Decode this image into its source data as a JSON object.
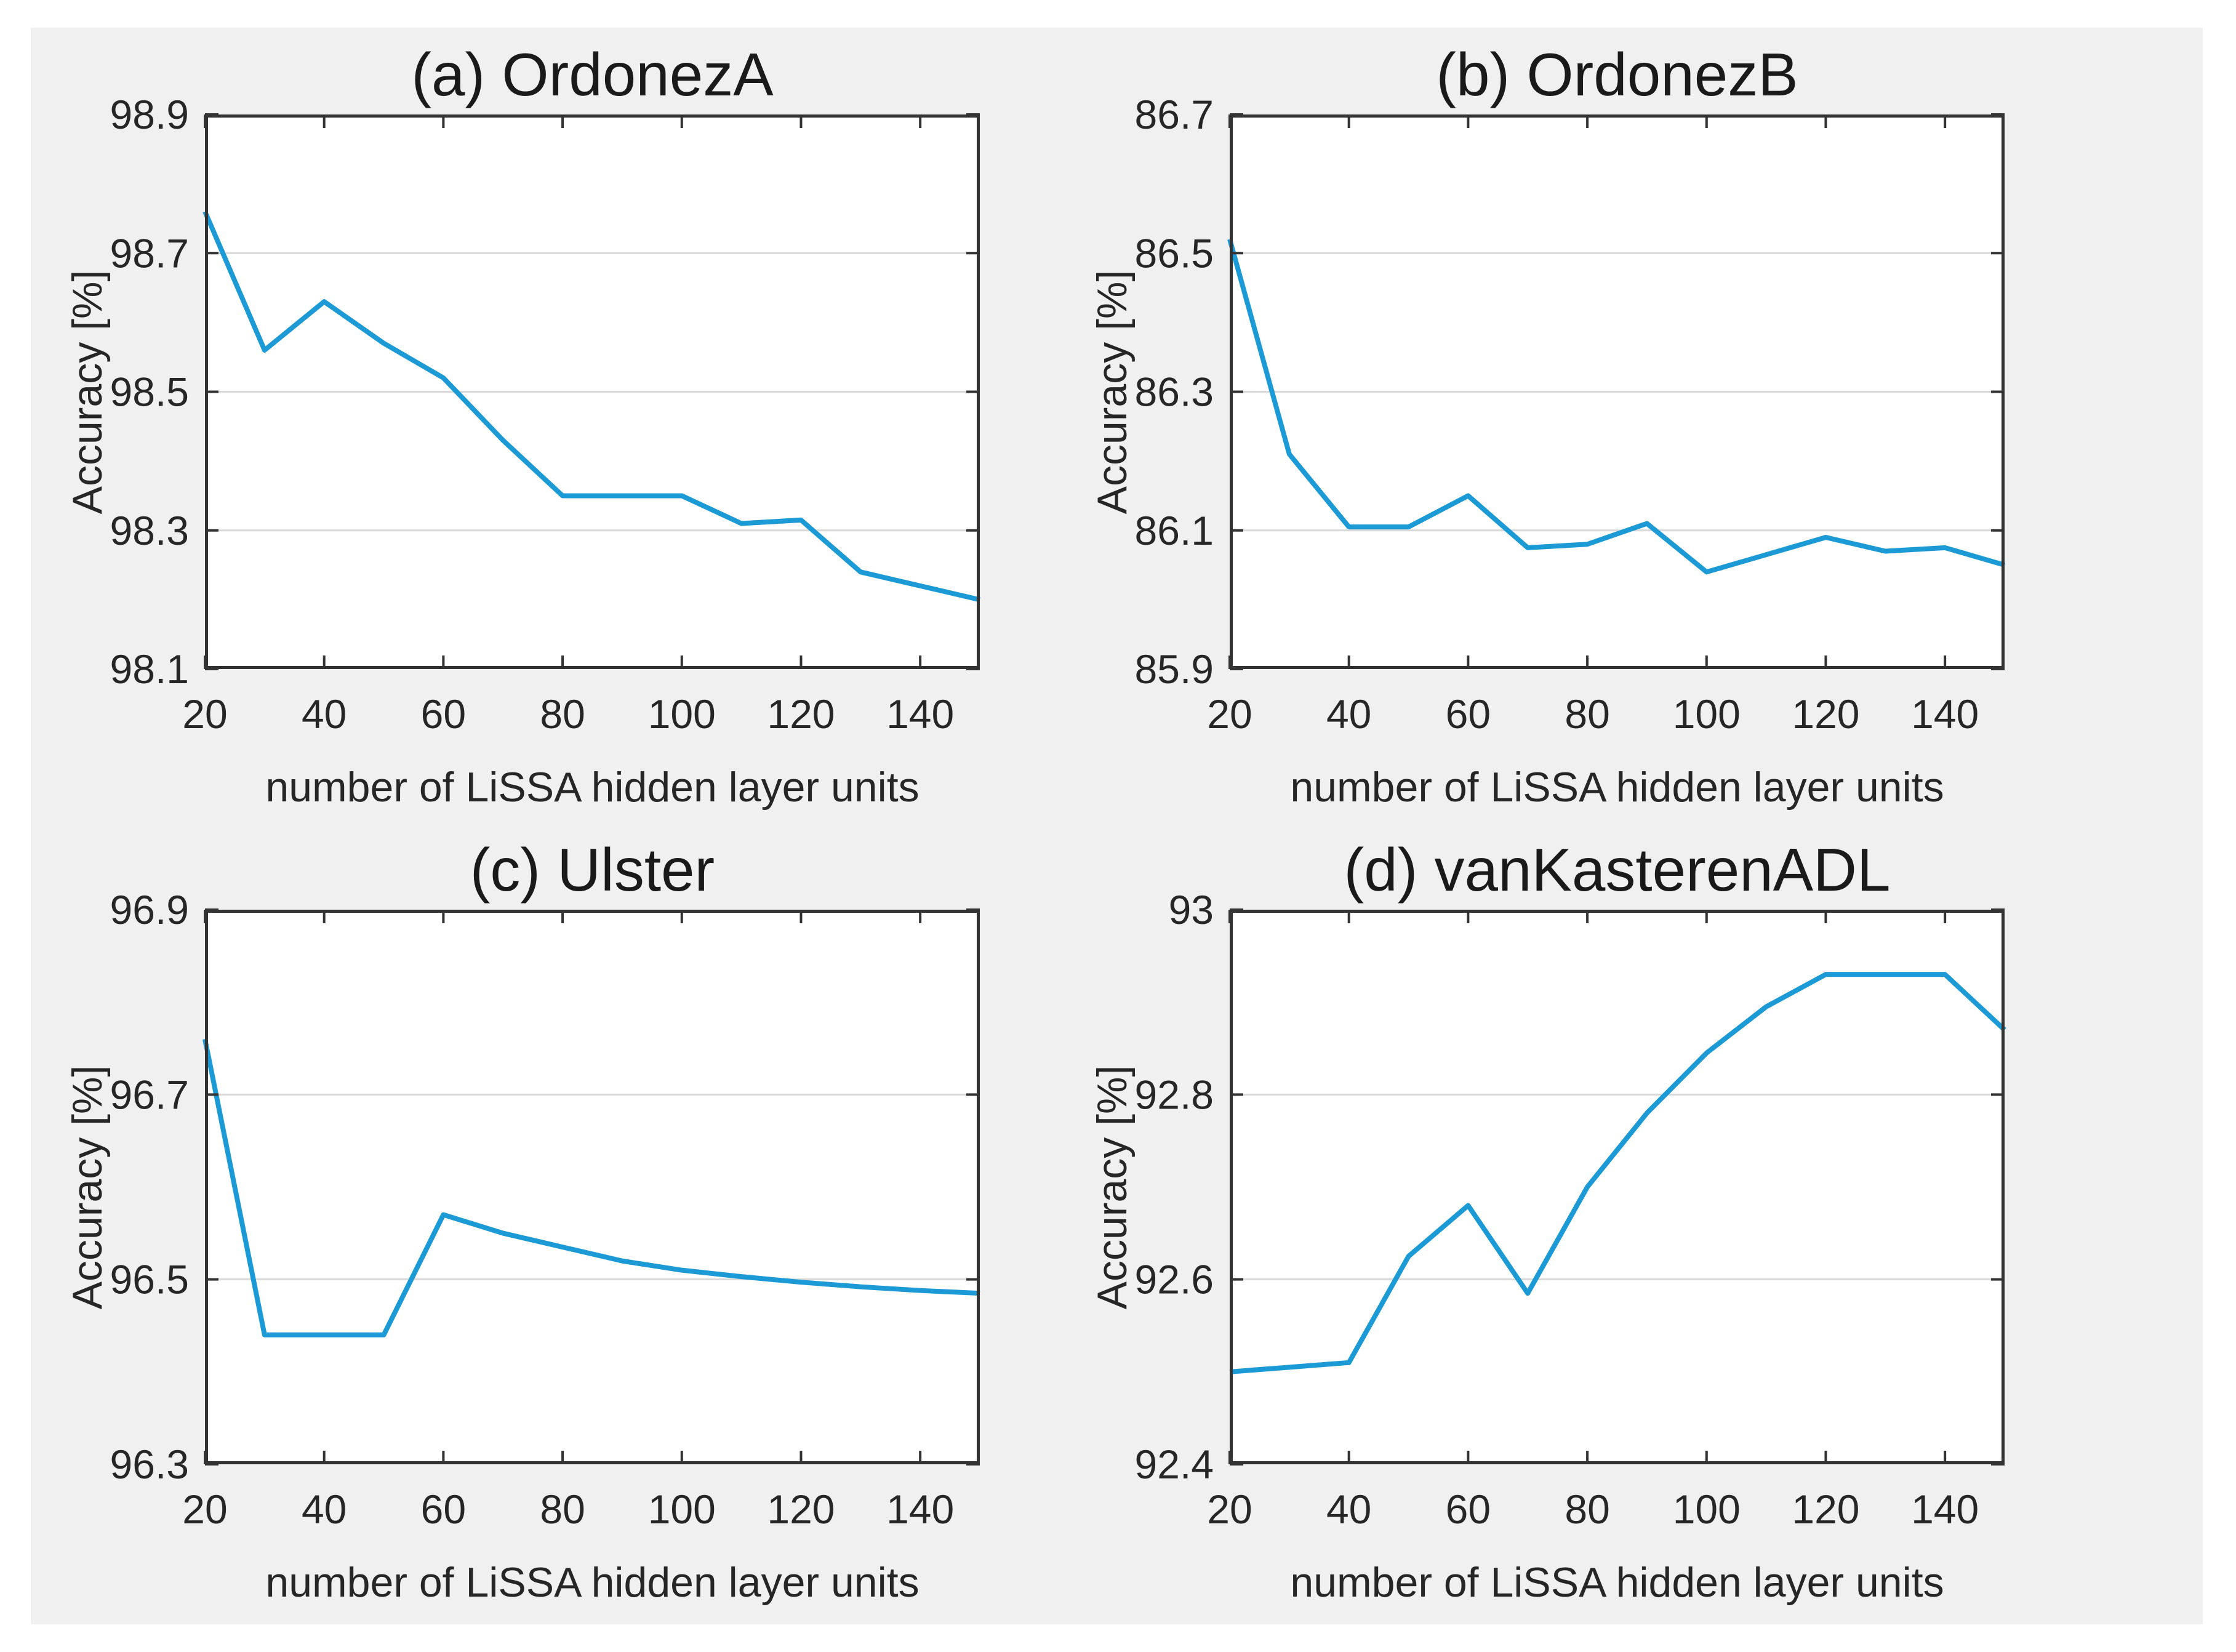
{
  "figure": {
    "background_color": "#ffffff",
    "panel_color": "#f0f0f0",
    "line_color": "#1b9ad6",
    "axis_color": "#333333",
    "grid_color": "#d9d9d9",
    "text_color": "#262626"
  },
  "chart_data": [
    {
      "type": "line",
      "id": "a",
      "title": "(a) OrdonezA",
      "xlabel": "number of LiSSA hidden layer units",
      "ylabel": "Accuracy [%]",
      "xlim": [
        20,
        150
      ],
      "ylim": [
        98.1,
        98.9
      ],
      "xticks": [
        20,
        40,
        60,
        80,
        100,
        120,
        140
      ],
      "yticks": [
        98.1,
        98.3,
        98.5,
        98.7,
        98.9
      ],
      "grid": "horizontal-only",
      "legend": "none",
      "x": [
        20,
        30,
        40,
        50,
        60,
        70,
        80,
        90,
        100,
        110,
        120,
        130,
        140,
        150
      ],
      "y": [
        98.76,
        98.56,
        98.63,
        98.57,
        98.52,
        98.43,
        98.35,
        98.35,
        98.35,
        98.31,
        98.315,
        98.24,
        98.22,
        98.2
      ]
    },
    {
      "type": "line",
      "id": "b",
      "title": "(b) OrdonezB",
      "xlabel": "number of LiSSA hidden layer units",
      "ylabel": "Accuracy [%]",
      "xlim": [
        20,
        150
      ],
      "ylim": [
        85.9,
        86.7
      ],
      "xticks": [
        20,
        40,
        60,
        80,
        100,
        120,
        140
      ],
      "yticks": [
        85.9,
        86.1,
        86.3,
        86.5,
        86.7
      ],
      "grid": "horizontal-only",
      "legend": "none",
      "x": [
        20,
        30,
        40,
        50,
        60,
        70,
        80,
        90,
        100,
        110,
        120,
        130,
        140,
        150
      ],
      "y": [
        86.52,
        86.21,
        86.105,
        86.105,
        86.15,
        86.075,
        86.08,
        86.11,
        86.04,
        86.065,
        86.09,
        86.07,
        86.075,
        86.05
      ]
    },
    {
      "type": "line",
      "id": "c",
      "title": "(c) Ulster",
      "xlabel": "number of LiSSA hidden layer units",
      "ylabel": "Accuracy [%]",
      "xlim": [
        20,
        150
      ],
      "ylim": [
        96.3,
        96.9
      ],
      "xticks": [
        20,
        40,
        60,
        80,
        100,
        120,
        140
      ],
      "yticks": [
        96.3,
        96.5,
        96.7,
        96.9
      ],
      "grid": "horizontal-only",
      "legend": "none",
      "x": [
        20,
        30,
        40,
        50,
        60,
        70,
        80,
        90,
        100,
        110,
        120,
        130,
        140,
        150
      ],
      "y": [
        96.76,
        96.44,
        96.44,
        96.44,
        96.57,
        96.55,
        96.535,
        96.52,
        96.51,
        96.503,
        96.497,
        96.492,
        96.488,
        96.485
      ]
    },
    {
      "type": "line",
      "id": "d",
      "title": "(d) vanKasterenADL",
      "xlabel": "number of LiSSA hidden layer units",
      "ylabel": "Accuracy [%]",
      "xlim": [
        20,
        150
      ],
      "ylim": [
        92.4,
        93
      ],
      "xticks": [
        20,
        40,
        60,
        80,
        100,
        120,
        140
      ],
      "yticks": [
        92.4,
        92.6,
        92.8,
        93
      ],
      "grid": "horizontal-only",
      "legend": "none",
      "x": [
        20,
        30,
        40,
        50,
        60,
        70,
        80,
        90,
        100,
        110,
        120,
        130,
        140,
        150
      ],
      "y": [
        92.5,
        92.505,
        92.51,
        92.625,
        92.68,
        92.585,
        92.7,
        92.78,
        92.845,
        92.895,
        92.93,
        92.93,
        92.93,
        92.87
      ]
    }
  ]
}
